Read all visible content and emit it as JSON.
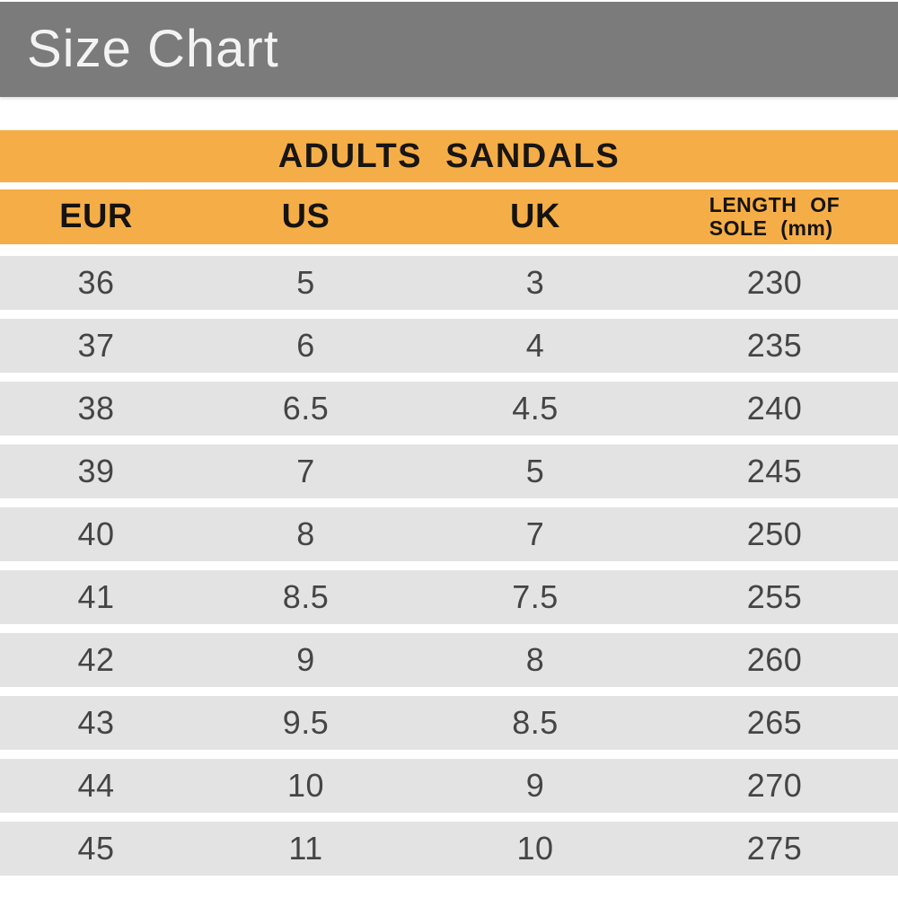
{
  "banner": {
    "title": "Size Chart"
  },
  "header": {
    "col1": "EUR",
    "col2": "US",
    "col3": "UK",
    "col4_line1": "LENGTH OF",
    "col4_line2": "SOLE (mm)"
  },
  "chart_data": {
    "type": "table",
    "title": "ADULTS SANDALS",
    "columns": [
      "EUR",
      "US",
      "UK",
      "LENGTH OF SOLE (mm)"
    ],
    "rows": [
      [
        "36",
        "5",
        "3",
        "230"
      ],
      [
        "37",
        "6",
        "4",
        "235"
      ],
      [
        "38",
        "6.5",
        "4.5",
        "240"
      ],
      [
        "39",
        "7",
        "5",
        "245"
      ],
      [
        "40",
        "8",
        "7",
        "250"
      ],
      [
        "41",
        "8.5",
        "7.5",
        "255"
      ],
      [
        "42",
        "9",
        "8",
        "260"
      ],
      [
        "43",
        "9.5",
        "8.5",
        "265"
      ],
      [
        "44",
        "10",
        "9",
        "270"
      ],
      [
        "45",
        "11",
        "10",
        "275"
      ]
    ]
  },
  "colors": {
    "banner_gray": "#7b7b7b",
    "accent_orange": "#f5ae47",
    "row_gray": "#e3e3e3",
    "banner_text": "#f3f3f3",
    "data_text": "#454545"
  }
}
